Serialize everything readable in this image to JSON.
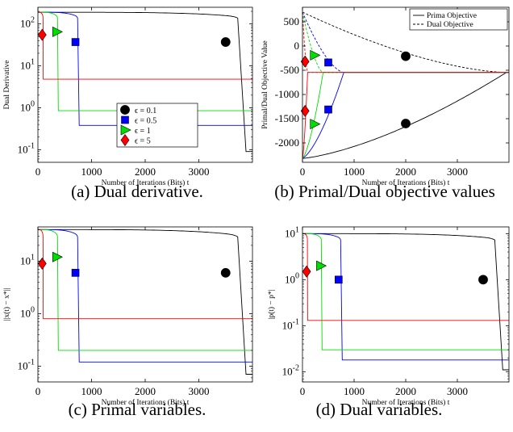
{
  "captions": {
    "a": "(a) Dual derivative.",
    "b": "(b) Primal/Dual objective values",
    "c": "(c) Primal variables.",
    "d": "(d) Dual variables."
  },
  "colors": {
    "eps_0_1": "#000000",
    "eps_0_5": "#0000ff",
    "eps_1": "#00dd00",
    "eps_5": "#ff0000"
  },
  "chart_data": [
    {
      "id": "a",
      "type": "line",
      "xlabel": "Number of Iterations (Bits) t",
      "ylabel": "Dual Derivative",
      "xlim": [
        0,
        4000
      ],
      "ylim": [
        0.05,
        250
      ],
      "yscale": "log",
      "xticks": [
        "0",
        "1000",
        "2000",
        "3000"
      ],
      "yticks": [
        "10^{-1}",
        "10^{0}",
        "10^{1}",
        "10^{2}"
      ],
      "grid": false,
      "legend": {
        "placement": "center-right",
        "entries": [
          "ϵ = 0.1",
          "ϵ = 0.5",
          "ϵ = 1",
          "ϵ = 5"
        ]
      },
      "series": [
        {
          "name": "ϵ = 0.1",
          "color": "#000000",
          "marker": "circle",
          "start": 190,
          "end": 0.09,
          "drop_x": 3880,
          "marker_x": 3500,
          "marker_y": 37
        },
        {
          "name": "ϵ = 0.5",
          "color": "#0000ff",
          "marker": "square",
          "start": 190,
          "end": 0.38,
          "drop_x": 770,
          "marker_x": 700,
          "marker_y": 37
        },
        {
          "name": "ϵ = 1",
          "color": "#00dd00",
          "marker": "triangle-right",
          "start": 190,
          "end": 0.85,
          "drop_x": 380,
          "marker_x": 350,
          "marker_y": 65
        },
        {
          "name": "ϵ = 5",
          "color": "#ff0000",
          "marker": "diamond",
          "start": 190,
          "end": 4.8,
          "drop_x": 100,
          "marker_x": 80,
          "marker_y": 55
        }
      ]
    },
    {
      "id": "b",
      "type": "line",
      "xlabel": "Number of Iterations (Bits) t",
      "ylabel": "Primal/Dual Objective Value",
      "xlim": [
        0,
        4000
      ],
      "ylim": [
        -2400,
        800
      ],
      "yscale": "linear",
      "xticks": [
        "0",
        "1000",
        "2000",
        "3000"
      ],
      "yticks": [
        "-2000",
        "-1500",
        "-1000",
        "-500",
        "0",
        "500"
      ],
      "grid": false,
      "legend": {
        "placement": "top-right",
        "entries": [
          "Prima Objective",
          "Dual Objective"
        ]
      },
      "converge_y": -545,
      "primal_start": -2320,
      "dual_start": 700,
      "series": [
        {
          "name": "ϵ = 0.1",
          "color": "#000000",
          "marker": "circle",
          "end_x": 3950,
          "primal_marker": [
            2000,
            -1600
          ],
          "dual_marker": [
            2000,
            -210
          ]
        },
        {
          "name": "ϵ = 0.5",
          "color": "#0000ff",
          "marker": "square",
          "end_x": 800,
          "primal_marker": [
            500,
            -1310
          ],
          "dual_marker": [
            500,
            -340
          ]
        },
        {
          "name": "ϵ = 1",
          "color": "#00dd00",
          "marker": "triangle-right",
          "end_x": 400,
          "primal_marker": [
            230,
            -1610
          ],
          "dual_marker": [
            230,
            -190
          ]
        },
        {
          "name": "ϵ = 5",
          "color": "#ff0000",
          "marker": "diamond",
          "end_x": 100,
          "primal_marker": [
            50,
            -1340
          ],
          "dual_marker": [
            50,
            -320
          ]
        }
      ]
    },
    {
      "id": "c",
      "type": "line",
      "xlabel": "Number of Iterations (Bits) t",
      "ylabel": "||x(t) − x*||",
      "xlim": [
        0,
        4000
      ],
      "ylim": [
        0.05,
        45
      ],
      "yscale": "log",
      "xticks": [
        "0",
        "1000",
        "2000",
        "3000"
      ],
      "yticks": [
        "10^{-1}",
        "10^{0}",
        "10^{1}"
      ],
      "grid": false,
      "series": [
        {
          "name": "ϵ = 0.1",
          "color": "#000000",
          "marker": "circle",
          "start": 40,
          "end": 0.07,
          "drop_x": 3880,
          "marker_x": 3500,
          "marker_y": 6
        },
        {
          "name": "ϵ = 0.5",
          "color": "#0000ff",
          "marker": "square",
          "start": 40,
          "end": 0.12,
          "drop_x": 770,
          "marker_x": 700,
          "marker_y": 6
        },
        {
          "name": "ϵ = 1",
          "color": "#00dd00",
          "marker": "triangle-right",
          "start": 40,
          "end": 0.2,
          "drop_x": 380,
          "marker_x": 350,
          "marker_y": 12
        },
        {
          "name": "ϵ = 5",
          "color": "#ff0000",
          "marker": "diamond",
          "start": 40,
          "end": 0.8,
          "drop_x": 100,
          "marker_x": 80,
          "marker_y": 9
        }
      ]
    },
    {
      "id": "d",
      "type": "line",
      "xlabel": "Number of Iterations (Bits) t",
      "ylabel": "|p(t) − p*|",
      "xlim": [
        0,
        4000
      ],
      "ylim": [
        0.006,
        14
      ],
      "yscale": "log",
      "xticks": [
        "0",
        "1000",
        "2000",
        "3000"
      ],
      "yticks": [
        "10^{-2}",
        "10^{-1}",
        "10^{0}",
        "10^{1}"
      ],
      "grid": false,
      "series": [
        {
          "name": "ϵ = 0.1",
          "color": "#000000",
          "marker": "circle",
          "start": 10,
          "end": 0.011,
          "drop_x": 3880,
          "marker_x": 3500,
          "marker_y": 1.0
        },
        {
          "name": "ϵ = 0.5",
          "color": "#0000ff",
          "marker": "square",
          "start": 10,
          "end": 0.018,
          "drop_x": 770,
          "marker_x": 700,
          "marker_y": 1.0
        },
        {
          "name": "ϵ = 1",
          "color": "#00dd00",
          "marker": "triangle-right",
          "start": 10,
          "end": 0.03,
          "drop_x": 380,
          "marker_x": 350,
          "marker_y": 2.0
        },
        {
          "name": "ϵ = 5",
          "color": "#ff0000",
          "marker": "diamond",
          "start": 10,
          "end": 0.13,
          "drop_x": 100,
          "marker_x": 80,
          "marker_y": 1.5
        }
      ]
    }
  ]
}
